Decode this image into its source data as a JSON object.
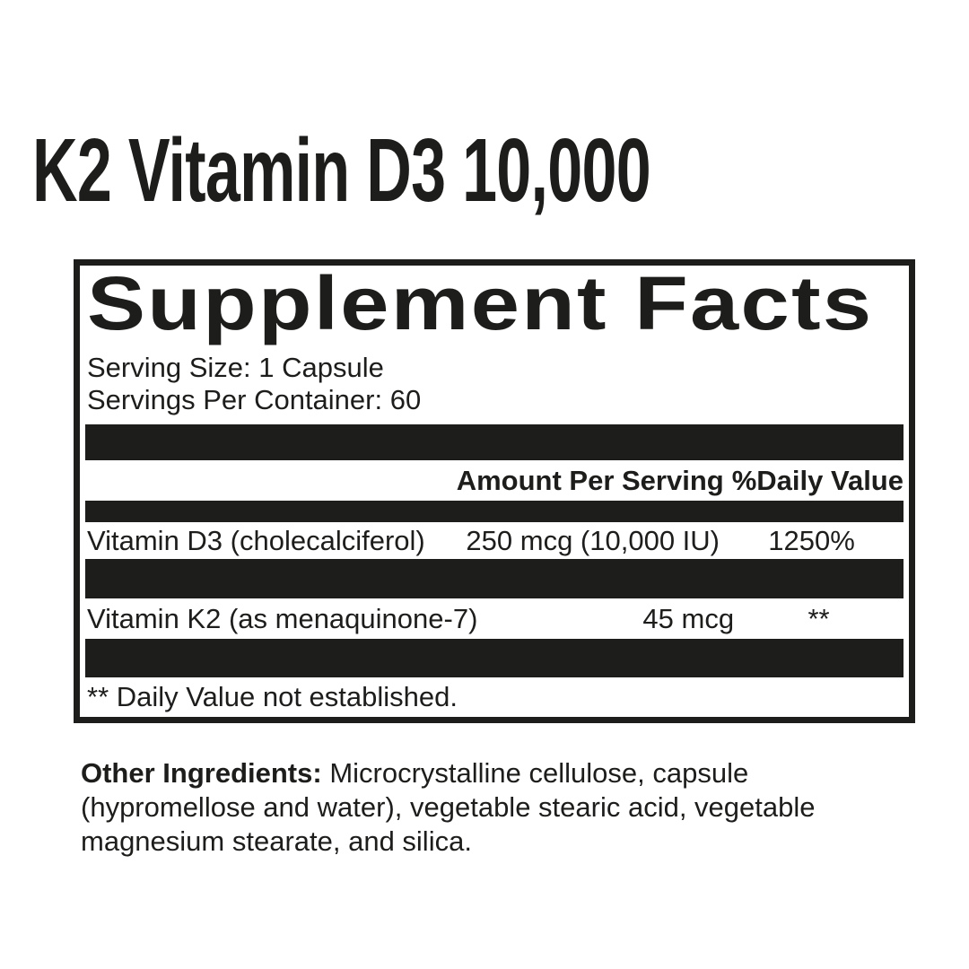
{
  "page": {
    "product_title": "K2 Vitamin D3 10,000"
  },
  "supplement_facts": {
    "heading": "Supplement Facts",
    "serving_size": "Serving Size: 1 Capsule",
    "servings_per_container": "Servings Per Container: 60",
    "columns": {
      "amount_header": "Amount Per Serving",
      "daily_value_header": "%Daily Value"
    },
    "rows": [
      {
        "name": "Vitamin D3 (cholecalciferol)",
        "amount": "250 mcg (10,000 IU)",
        "daily_value": "1250%"
      },
      {
        "name": "Vitamin K2 (as menaquinone-7)",
        "amount": "45 mcg",
        "daily_value": "**"
      }
    ],
    "footnote": "** Daily Value not established."
  },
  "other_ingredients": {
    "label": "Other Ingredients:",
    "text": " Microcrystalline cellulose, capsule (hypromellose and water), vegetable stearic acid, vegetable magnesium stearate, and silica."
  },
  "colors": {
    "ink": "#1d1d1b",
    "bar": "#1d1d1b",
    "background": "#ffffff"
  }
}
